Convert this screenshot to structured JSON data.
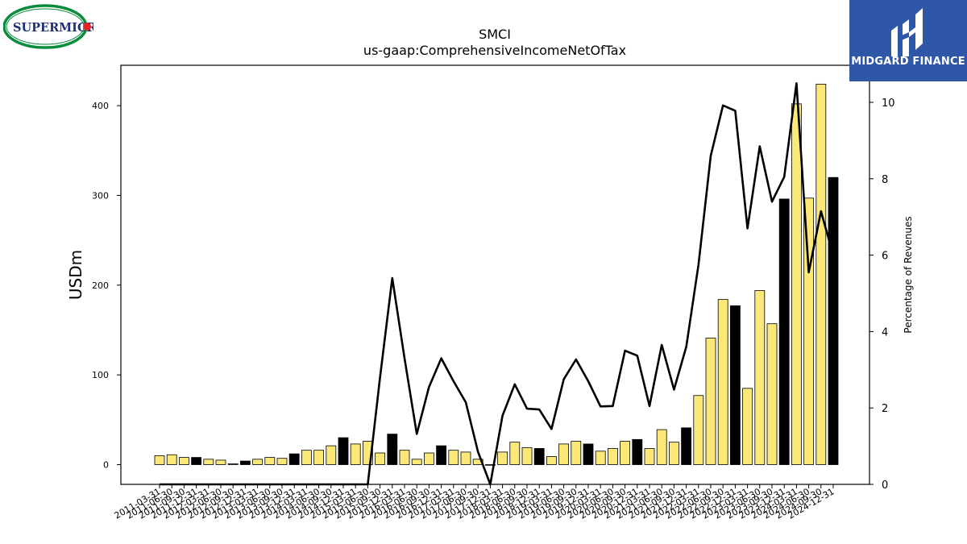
{
  "logos": {
    "left_text": "SUPERMICR",
    "right_text": "MIDGARD FINANCE"
  },
  "chart_data": {
    "type": "bar",
    "title": "SMCI",
    "subtitle": "us-gaap:ComprehensiveIncomeNetOfTax",
    "ylabel": "USDm",
    "y2label": "Percentage of Revenues",
    "ylim": [
      -22,
      445
    ],
    "y2lim": [
      0,
      10.97
    ],
    "yticks": [
      0,
      100,
      200,
      300,
      400
    ],
    "y2ticks": [
      0,
      2,
      4,
      6,
      8,
      10
    ],
    "grid": false,
    "legend": "none",
    "colors": {
      "bar": "#fce878",
      "bar_q4": "#000000",
      "line": "#000000"
    },
    "categories": [
      "2011-03-31",
      "2011-06-30",
      "2011-09-30",
      "2011-12-31",
      "2012-03-31",
      "2012-06-30",
      "2012-09-30",
      "2012-12-31",
      "2013-03-31",
      "2013-06-30",
      "2013-09-30",
      "2013-12-31",
      "2014-03-31",
      "2014-06-30",
      "2014-09-30",
      "2014-12-31",
      "2015-03-31",
      "2015-06-30",
      "2015-09-30",
      "2015-12-31",
      "2016-03-31",
      "2016-06-30",
      "2016-09-30",
      "2016-12-31",
      "2017-03-31",
      "2017-06-30",
      "2017-09-30",
      "2017-12-31",
      "2018-03-31",
      "2018-06-30",
      "2018-09-30",
      "2018-12-31",
      "2019-03-31",
      "2019-06-30",
      "2019-09-30",
      "2019-12-31",
      "2020-03-31",
      "2020-06-30",
      "2020-09-30",
      "2020-12-31",
      "2021-03-31",
      "2021-06-30",
      "2021-09-30",
      "2021-12-31",
      "2022-03-31",
      "2022-06-30",
      "2022-09-30",
      "2022-12-31",
      "2023-03-31",
      "2023-06-30",
      "2023-09-30",
      "2023-12-31",
      "2024-03-31",
      "2024-06-30",
      "2024-09-30",
      "2024-12-31"
    ],
    "series": [
      {
        "type": "bar",
        "values": [
          10,
          11,
          8,
          8,
          6,
          5,
          1,
          4,
          6,
          8,
          7,
          12,
          16,
          16,
          21,
          30,
          23,
          26,
          13,
          34,
          16,
          6,
          13,
          21,
          16,
          14,
          6,
          0,
          14,
          25,
          19,
          18,
          9,
          23,
          26,
          23,
          15,
          18,
          26,
          28,
          18,
          39,
          25,
          41,
          77,
          141,
          184,
          177,
          85,
          194,
          157,
          296,
          402,
          297,
          424,
          320
        ],
        "q4_flags": [
          0,
          0,
          0,
          1,
          0,
          0,
          0,
          1,
          0,
          0,
          0,
          1,
          0,
          0,
          0,
          1,
          0,
          0,
          0,
          1,
          0,
          0,
          0,
          1,
          0,
          0,
          0,
          0,
          0,
          0,
          0,
          1,
          0,
          0,
          0,
          1,
          0,
          0,
          0,
          1,
          0,
          0,
          0,
          1,
          0,
          0,
          0,
          1,
          0,
          0,
          0,
          1,
          0,
          0,
          0,
          1
        ]
      },
      {
        "type": "line",
        "axis": "y2",
        "values": [
          0,
          0,
          0,
          0,
          0,
          0,
          0,
          0,
          0,
          0,
          0,
          0,
          0,
          0,
          0,
          0,
          0,
          0,
          2.8,
          5.4,
          3.3,
          1.32,
          2.55,
          3.3,
          2.7,
          2.15,
          0.85,
          0,
          1.8,
          2.62,
          1.98,
          1.96,
          1.45,
          2.75,
          3.27,
          2.7,
          2.04,
          2.05,
          3.5,
          3.37,
          2.05,
          3.65,
          2.48,
          3.6,
          5.75,
          8.6,
          9.92,
          9.78,
          6.7,
          8.85,
          7.4,
          8.05,
          10.5,
          5.55,
          7.15,
          6.0
        ]
      }
    ]
  }
}
